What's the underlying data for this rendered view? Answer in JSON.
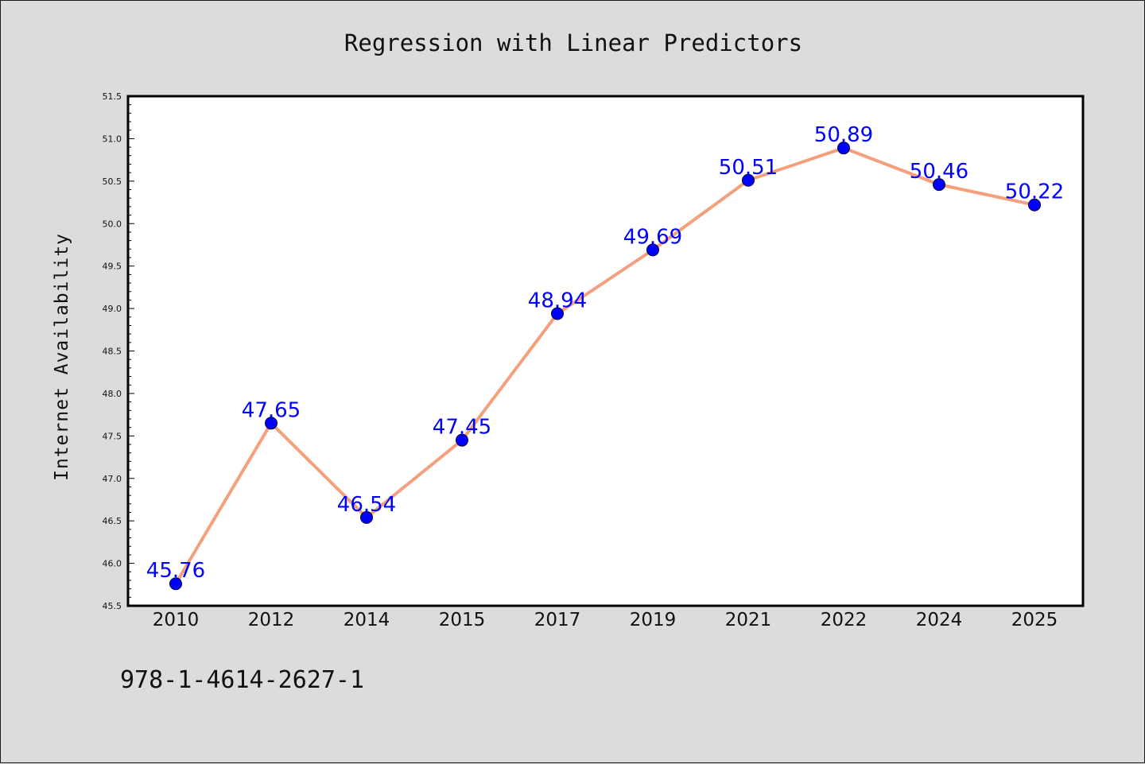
{
  "chart_data": {
    "type": "line",
    "title": "Regression with Linear Predictors",
    "xlabel": "",
    "ylabel": "Internet Availability",
    "categories": [
      "2010",
      "2012",
      "2014",
      "2015",
      "2017",
      "2019",
      "2021",
      "2022",
      "2024",
      "2025"
    ],
    "values": [
      45.76,
      47.65,
      46.54,
      47.45,
      48.94,
      49.69,
      50.51,
      50.89,
      50.46,
      50.22
    ],
    "value_labels": [
      "45.76",
      "47.65",
      "46.54",
      "47.45",
      "48.94",
      "49.69",
      "50.51",
      "50.89",
      "50.46",
      "50.22"
    ],
    "ylim": [
      45.5,
      51.5
    ],
    "yticks": [
      "45.5",
      "46.0",
      "46.5",
      "47.0",
      "47.5",
      "48.0",
      "48.5",
      "49.0",
      "49.5",
      "50.0",
      "50.5",
      "51.0",
      "51.5"
    ],
    "grid": false,
    "legend": "none",
    "colors": {
      "line": "#f4a07c",
      "marker": "#0000ff",
      "marker_edge": "#000033",
      "labels": "#0000ff",
      "background": "#dcdcdc",
      "plot_background": "#ffffff"
    }
  },
  "footer": {
    "isbn": "978-1-4614-2627-1"
  }
}
